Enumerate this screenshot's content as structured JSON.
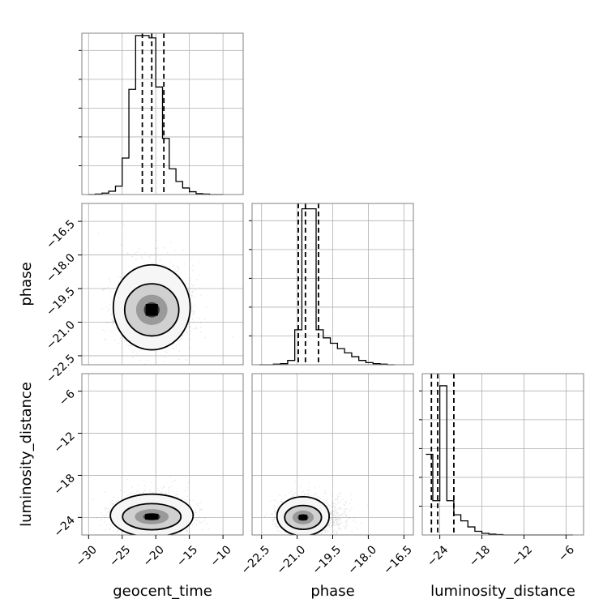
{
  "chart_data": {
    "type": "corner",
    "parameters": [
      "geocent_time",
      "phase",
      "luminosity_distance"
    ],
    "grid": true,
    "panels": {
      "geocent_time": {
        "type": "histogram",
        "xlim": [
          -31,
          -7
        ],
        "bin_edges": [
          -30,
          -29,
          -28,
          -27,
          -26,
          -25,
          -24,
          -23,
          -22,
          -21,
          -20,
          -19,
          -18,
          -17,
          -16,
          -15,
          -14,
          -13,
          -12,
          -11,
          -10
        ],
        "values": [
          0,
          1,
          3,
          7,
          18,
          78,
          225,
          340,
          340,
          335,
          230,
          120,
          55,
          28,
          14,
          6,
          2,
          1,
          0,
          0
        ],
        "ylim": [
          0,
          345
        ],
        "quantiles": [
          -22,
          -20.6,
          -18.8
        ]
      },
      "phase": {
        "type": "histogram",
        "xlim": [
          -22.9,
          -16.1
        ],
        "bin_edges": [
          -22.6,
          -22.3,
          -22.0,
          -21.7,
          -21.4,
          -21.1,
          -20.8,
          -20.5,
          -20.2,
          -19.9,
          -19.6,
          -19.3,
          -19.0,
          -18.7,
          -18.4,
          -18.1,
          -17.8,
          -17.5,
          -17.2,
          -16.9
        ],
        "values": [
          0,
          0,
          1,
          2,
          8,
          65,
          290,
          290,
          65,
          50,
          40,
          30,
          22,
          15,
          8,
          4,
          2,
          1,
          0
        ],
        "ylim": [
          0,
          300
        ],
        "quantiles": [
          -20.95,
          -20.65,
          -20.1
        ]
      },
      "luminosity_distance": {
        "type": "histogram",
        "xlim": [
          -26.5,
          -3.5
        ],
        "bin_edges": [
          -26,
          -25,
          -24,
          -23,
          -22,
          -21,
          -20,
          -19,
          -18,
          -17,
          -16,
          -15,
          -14,
          -13,
          -12,
          -11,
          -10,
          -9,
          -8,
          -7,
          -6,
          -5
        ],
        "values": [
          200,
          85,
          370,
          85,
          50,
          35,
          20,
          9,
          4,
          2,
          1,
          0,
          0,
          0,
          0,
          0,
          0,
          0,
          0,
          0,
          0
        ],
        "ylim": [
          0,
          400
        ],
        "quantiles": [
          -25.2,
          -24.3,
          -22.0
        ]
      },
      "phase_vs_geocent_time": {
        "type": "2d-density",
        "x": "geocent_time",
        "y": "phase",
        "xlim": [
          -31,
          -7
        ],
        "ylim": [
          -22.9,
          -15.7
        ],
        "center": [
          -20.6,
          -20.45
        ],
        "spread": [
          2.6,
          0.75
        ]
      },
      "luminosity_distance_vs_geocent_time": {
        "type": "2d-density",
        "x": "geocent_time",
        "y": "luminosity_distance",
        "xlim": [
          -31,
          -7
        ],
        "ylim": [
          -26.5,
          -3.5
        ],
        "center": [
          -20.6,
          -23.9
        ],
        "spread": [
          2.8,
          1.2
        ]
      },
      "luminosity_distance_vs_phase": {
        "type": "2d-density",
        "x": "phase",
        "y": "luminosity_distance",
        "xlim": [
          -22.9,
          -16.1
        ],
        "ylim": [
          -26.5,
          -3.5
        ],
        "center": [
          -20.75,
          -24.0
        ],
        "spread": [
          0.5,
          1.1
        ]
      }
    },
    "ticks": {
      "geocent_time": [
        -30,
        -25,
        -20,
        -15,
        -10
      ],
      "phase": [
        -22.5,
        -21.0,
        -19.5,
        -18.0,
        -16.5
      ],
      "luminosity_distance": [
        -24,
        -18,
        -12,
        -6
      ]
    },
    "tick_labels": {
      "geocent_time": [
        "−30",
        "−25",
        "−20",
        "−15",
        "−10"
      ],
      "phase": [
        "−22.5",
        "−21.0",
        "−19.5",
        "−18.0",
        "−16.5"
      ],
      "luminosity_distance": [
        "−24",
        "−18",
        "−12",
        "−6"
      ]
    },
    "xlabels": [
      "geocent_time",
      "phase",
      "luminosity_distance"
    ],
    "ylabels": [
      "",
      "phase",
      "luminosity_distance"
    ]
  }
}
